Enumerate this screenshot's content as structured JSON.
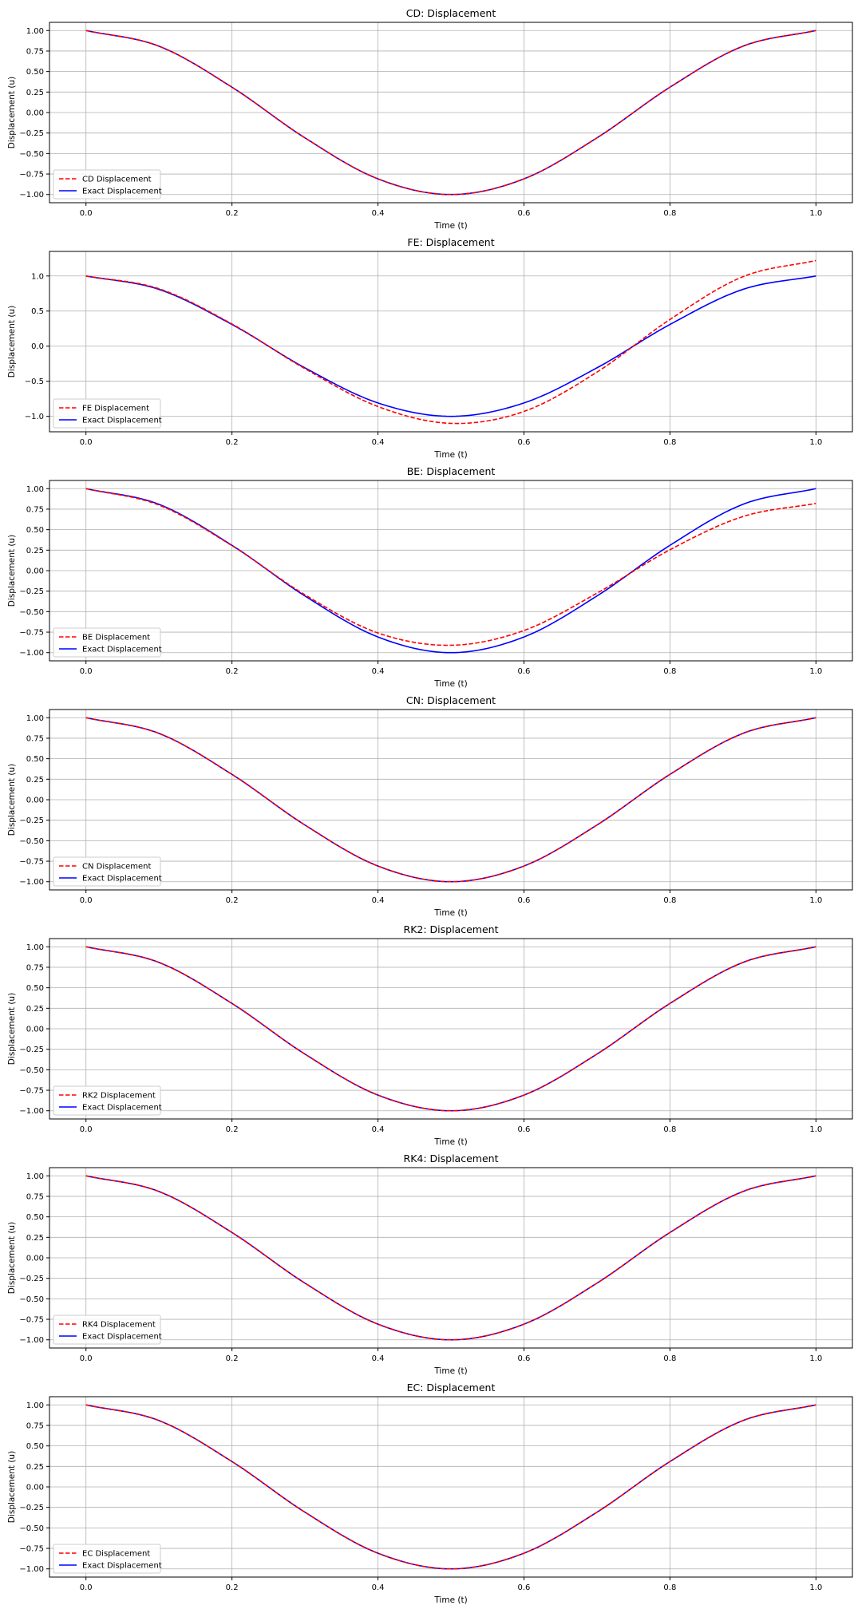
{
  "chart_data": [
    {
      "type": "line",
      "title": "CD: Displacement",
      "xlabel": "Time (t)",
      "ylabel": "Displacement (u)",
      "xlim": [
        -0.05,
        1.05
      ],
      "ylim": [
        -1.1,
        1.1
      ],
      "xticks": [
        0.0,
        0.2,
        0.4,
        0.6,
        0.8,
        1.0
      ],
      "xtick_labels": [
        "0.0",
        "0.2",
        "0.4",
        "0.6",
        "0.8",
        "1.0"
      ],
      "yticks": [
        -1.0,
        -0.75,
        -0.5,
        -0.25,
        0.0,
        0.25,
        0.5,
        0.75,
        1.0
      ],
      "ytick_labels": [
        "−1.00",
        "−0.75",
        "−0.50",
        "−0.25",
        "0.00",
        "0.25",
        "0.50",
        "0.75",
        "1.00"
      ],
      "grid": true,
      "legend": "lower-left",
      "x": [
        0.0,
        0.1,
        0.2,
        0.3,
        0.4,
        0.5,
        0.6,
        0.7,
        0.8,
        0.9,
        1.0
      ],
      "series": [
        {
          "name": "CD Displacement",
          "color": "#ff0000",
          "dash": "dashed",
          "values": [
            1.0,
            0.809,
            0.309,
            -0.309,
            -0.809,
            -1.0,
            -0.809,
            -0.309,
            0.309,
            0.809,
            1.0
          ]
        },
        {
          "name": "Exact Displacement",
          "color": "#0000ff",
          "dash": "solid",
          "values": [
            1.0,
            0.809,
            0.309,
            -0.309,
            -0.809,
            -1.0,
            -0.809,
            -0.309,
            0.309,
            0.809,
            1.0
          ]
        }
      ]
    },
    {
      "type": "line",
      "title": "FE: Displacement",
      "xlabel": "Time (t)",
      "ylabel": "Displacement (u)",
      "xlim": [
        -0.05,
        1.05
      ],
      "ylim": [
        -1.22,
        1.35
      ],
      "xticks": [
        0.0,
        0.2,
        0.4,
        0.6,
        0.8,
        1.0
      ],
      "xtick_labels": [
        "0.0",
        "0.2",
        "0.4",
        "0.6",
        "0.8",
        "1.0"
      ],
      "yticks": [
        -1.0,
        -0.5,
        0.0,
        0.5,
        1.0
      ],
      "ytick_labels": [
        "−1.0",
        "−0.5",
        "0.0",
        "0.5",
        "1.0"
      ],
      "grid": true,
      "legend": "lower-left",
      "x": [
        0.0,
        0.1,
        0.2,
        0.3,
        0.4,
        0.5,
        0.6,
        0.7,
        0.8,
        0.9,
        1.0
      ],
      "series": [
        {
          "name": "FE Displacement",
          "color": "#ff0000",
          "dash": "dashed",
          "values": [
            1.0,
            0.818,
            0.316,
            -0.321,
            -0.86,
            -1.1,
            -0.93,
            -0.37,
            0.38,
            0.99,
            1.22
          ]
        },
        {
          "name": "Exact Displacement",
          "color": "#0000ff",
          "dash": "solid",
          "values": [
            1.0,
            0.809,
            0.309,
            -0.309,
            -0.809,
            -1.0,
            -0.809,
            -0.309,
            0.309,
            0.809,
            1.0
          ]
        }
      ]
    },
    {
      "type": "line",
      "title": "BE: Displacement",
      "xlabel": "Time (t)",
      "ylabel": "Displacement (u)",
      "xlim": [
        -0.05,
        1.05
      ],
      "ylim": [
        -1.1,
        1.1
      ],
      "xticks": [
        0.0,
        0.2,
        0.4,
        0.6,
        0.8,
        1.0
      ],
      "xtick_labels": [
        "0.0",
        "0.2",
        "0.4",
        "0.6",
        "0.8",
        "1.0"
      ],
      "yticks": [
        -1.0,
        -0.75,
        -0.5,
        -0.25,
        0.0,
        0.25,
        0.5,
        0.75,
        1.0
      ],
      "ytick_labels": [
        "−1.00",
        "−0.75",
        "−0.50",
        "−0.25",
        "0.00",
        "0.25",
        "0.50",
        "0.75",
        "1.00"
      ],
      "grid": true,
      "legend": "lower-left",
      "x": [
        0.0,
        0.1,
        0.2,
        0.3,
        0.4,
        0.5,
        0.6,
        0.7,
        0.8,
        0.9,
        1.0
      ],
      "series": [
        {
          "name": "BE Displacement",
          "color": "#ff0000",
          "dash": "dashed",
          "values": [
            1.0,
            0.8,
            0.305,
            -0.295,
            -0.76,
            -0.91,
            -0.73,
            -0.275,
            0.255,
            0.66,
            0.82
          ]
        },
        {
          "name": "Exact Displacement",
          "color": "#0000ff",
          "dash": "solid",
          "values": [
            1.0,
            0.809,
            0.309,
            -0.309,
            -0.809,
            -1.0,
            -0.809,
            -0.309,
            0.309,
            0.809,
            1.0
          ]
        }
      ]
    },
    {
      "type": "line",
      "title": "CN: Displacement",
      "xlabel": "Time (t)",
      "ylabel": "Displacement (u)",
      "xlim": [
        -0.05,
        1.05
      ],
      "ylim": [
        -1.1,
        1.1
      ],
      "xticks": [
        0.0,
        0.2,
        0.4,
        0.6,
        0.8,
        1.0
      ],
      "xtick_labels": [
        "0.0",
        "0.2",
        "0.4",
        "0.6",
        "0.8",
        "1.0"
      ],
      "yticks": [
        -1.0,
        -0.75,
        -0.5,
        -0.25,
        0.0,
        0.25,
        0.5,
        0.75,
        1.0
      ],
      "ytick_labels": [
        "−1.00",
        "−0.75",
        "−0.50",
        "−0.25",
        "0.00",
        "0.25",
        "0.50",
        "0.75",
        "1.00"
      ],
      "grid": true,
      "legend": "lower-left",
      "x": [
        0.0,
        0.1,
        0.2,
        0.3,
        0.4,
        0.5,
        0.6,
        0.7,
        0.8,
        0.9,
        1.0
      ],
      "series": [
        {
          "name": "CN Displacement",
          "color": "#ff0000",
          "dash": "dashed",
          "values": [
            1.0,
            0.809,
            0.309,
            -0.309,
            -0.809,
            -1.0,
            -0.809,
            -0.309,
            0.309,
            0.809,
            1.0
          ]
        },
        {
          "name": "Exact Displacement",
          "color": "#0000ff",
          "dash": "solid",
          "values": [
            1.0,
            0.809,
            0.309,
            -0.309,
            -0.809,
            -1.0,
            -0.809,
            -0.309,
            0.309,
            0.809,
            1.0
          ]
        }
      ]
    },
    {
      "type": "line",
      "title": "RK2: Displacement",
      "xlabel": "Time (t)",
      "ylabel": "Displacement (u)",
      "xlim": [
        -0.05,
        1.05
      ],
      "ylim": [
        -1.1,
        1.1
      ],
      "xticks": [
        0.0,
        0.2,
        0.4,
        0.6,
        0.8,
        1.0
      ],
      "xtick_labels": [
        "0.0",
        "0.2",
        "0.4",
        "0.6",
        "0.8",
        "1.0"
      ],
      "yticks": [
        -1.0,
        -0.75,
        -0.5,
        -0.25,
        0.0,
        0.25,
        0.5,
        0.75,
        1.0
      ],
      "ytick_labels": [
        "−1.00",
        "−0.75",
        "−0.50",
        "−0.25",
        "0.00",
        "0.25",
        "0.50",
        "0.75",
        "1.00"
      ],
      "grid": true,
      "legend": "lower-left",
      "x": [
        0.0,
        0.1,
        0.2,
        0.3,
        0.4,
        0.5,
        0.6,
        0.7,
        0.8,
        0.9,
        1.0
      ],
      "series": [
        {
          "name": "RK2 Displacement",
          "color": "#ff0000",
          "dash": "dashed",
          "values": [
            1.0,
            0.809,
            0.309,
            -0.309,
            -0.809,
            -1.0,
            -0.809,
            -0.309,
            0.309,
            0.809,
            1.0
          ]
        },
        {
          "name": "Exact Displacement",
          "color": "#0000ff",
          "dash": "solid",
          "values": [
            1.0,
            0.809,
            0.309,
            -0.309,
            -0.809,
            -1.0,
            -0.809,
            -0.309,
            0.309,
            0.809,
            1.0
          ]
        }
      ]
    },
    {
      "type": "line",
      "title": "RK4: Displacement",
      "xlabel": "Time (t)",
      "ylabel": "Displacement (u)",
      "xlim": [
        -0.05,
        1.05
      ],
      "ylim": [
        -1.1,
        1.1
      ],
      "xticks": [
        0.0,
        0.2,
        0.4,
        0.6,
        0.8,
        1.0
      ],
      "xtick_labels": [
        "0.0",
        "0.2",
        "0.4",
        "0.6",
        "0.8",
        "1.0"
      ],
      "yticks": [
        -1.0,
        -0.75,
        -0.5,
        -0.25,
        0.0,
        0.25,
        0.5,
        0.75,
        1.0
      ],
      "ytick_labels": [
        "−1.00",
        "−0.75",
        "−0.50",
        "−0.25",
        "0.00",
        "0.25",
        "0.50",
        "0.75",
        "1.00"
      ],
      "grid": true,
      "legend": "lower-left",
      "x": [
        0.0,
        0.1,
        0.2,
        0.3,
        0.4,
        0.5,
        0.6,
        0.7,
        0.8,
        0.9,
        1.0
      ],
      "series": [
        {
          "name": "RK4 Displacement",
          "color": "#ff0000",
          "dash": "dashed",
          "values": [
            1.0,
            0.809,
            0.309,
            -0.309,
            -0.809,
            -1.0,
            -0.809,
            -0.309,
            0.309,
            0.809,
            1.0
          ]
        },
        {
          "name": "Exact Displacement",
          "color": "#0000ff",
          "dash": "solid",
          "values": [
            1.0,
            0.809,
            0.309,
            -0.309,
            -0.809,
            -1.0,
            -0.809,
            -0.309,
            0.309,
            0.809,
            1.0
          ]
        }
      ]
    },
    {
      "type": "line",
      "title": "EC: Displacement",
      "xlabel": "Time (t)",
      "ylabel": "Displacement (u)",
      "xlim": [
        -0.05,
        1.05
      ],
      "ylim": [
        -1.1,
        1.1
      ],
      "xticks": [
        0.0,
        0.2,
        0.4,
        0.6,
        0.8,
        1.0
      ],
      "xtick_labels": [
        "0.0",
        "0.2",
        "0.4",
        "0.6",
        "0.8",
        "1.0"
      ],
      "yticks": [
        -1.0,
        -0.75,
        -0.5,
        -0.25,
        0.0,
        0.25,
        0.5,
        0.75,
        1.0
      ],
      "ytick_labels": [
        "−1.00",
        "−0.75",
        "−0.50",
        "−0.25",
        "0.00",
        "0.25",
        "0.50",
        "0.75",
        "1.00"
      ],
      "grid": true,
      "legend": "lower-left",
      "x": [
        0.0,
        0.1,
        0.2,
        0.3,
        0.4,
        0.5,
        0.6,
        0.7,
        0.8,
        0.9,
        1.0
      ],
      "series": [
        {
          "name": "EC Displacement",
          "color": "#ff0000",
          "dash": "dashed",
          "values": [
            1.0,
            0.809,
            0.309,
            -0.309,
            -0.809,
            -1.0,
            -0.809,
            -0.309,
            0.309,
            0.809,
            1.0
          ]
        },
        {
          "name": "Exact Displacement",
          "color": "#0000ff",
          "dash": "solid",
          "values": [
            1.0,
            0.809,
            0.309,
            -0.309,
            -0.809,
            -1.0,
            -0.809,
            -0.309,
            0.309,
            0.809,
            1.0
          ]
        }
      ]
    }
  ]
}
